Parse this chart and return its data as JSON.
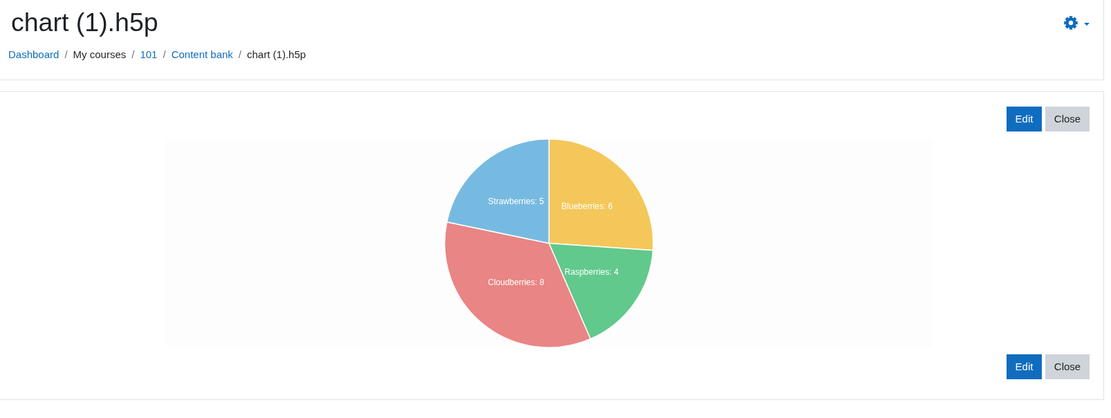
{
  "chart_data": {
    "type": "pie",
    "title": "chart (1).h5p",
    "categories": [
      "Blueberries",
      "Raspberries",
      "Cloudberries",
      "Strawberries"
    ],
    "values": [
      6,
      4,
      8,
      5
    ],
    "value_labels": [
      ": 6",
      ": 4",
      ": 8",
      ": 5"
    ],
    "colors": [
      "#f4c75a",
      "#61c98c",
      "#e98584",
      "#76bae2"
    ],
    "annotations": [
      "Dashboard / My courses / 101 / Content bank / chart (1).h5p",
      "Edit",
      "Close",
      "Edit",
      "Close"
    ]
  }
}
